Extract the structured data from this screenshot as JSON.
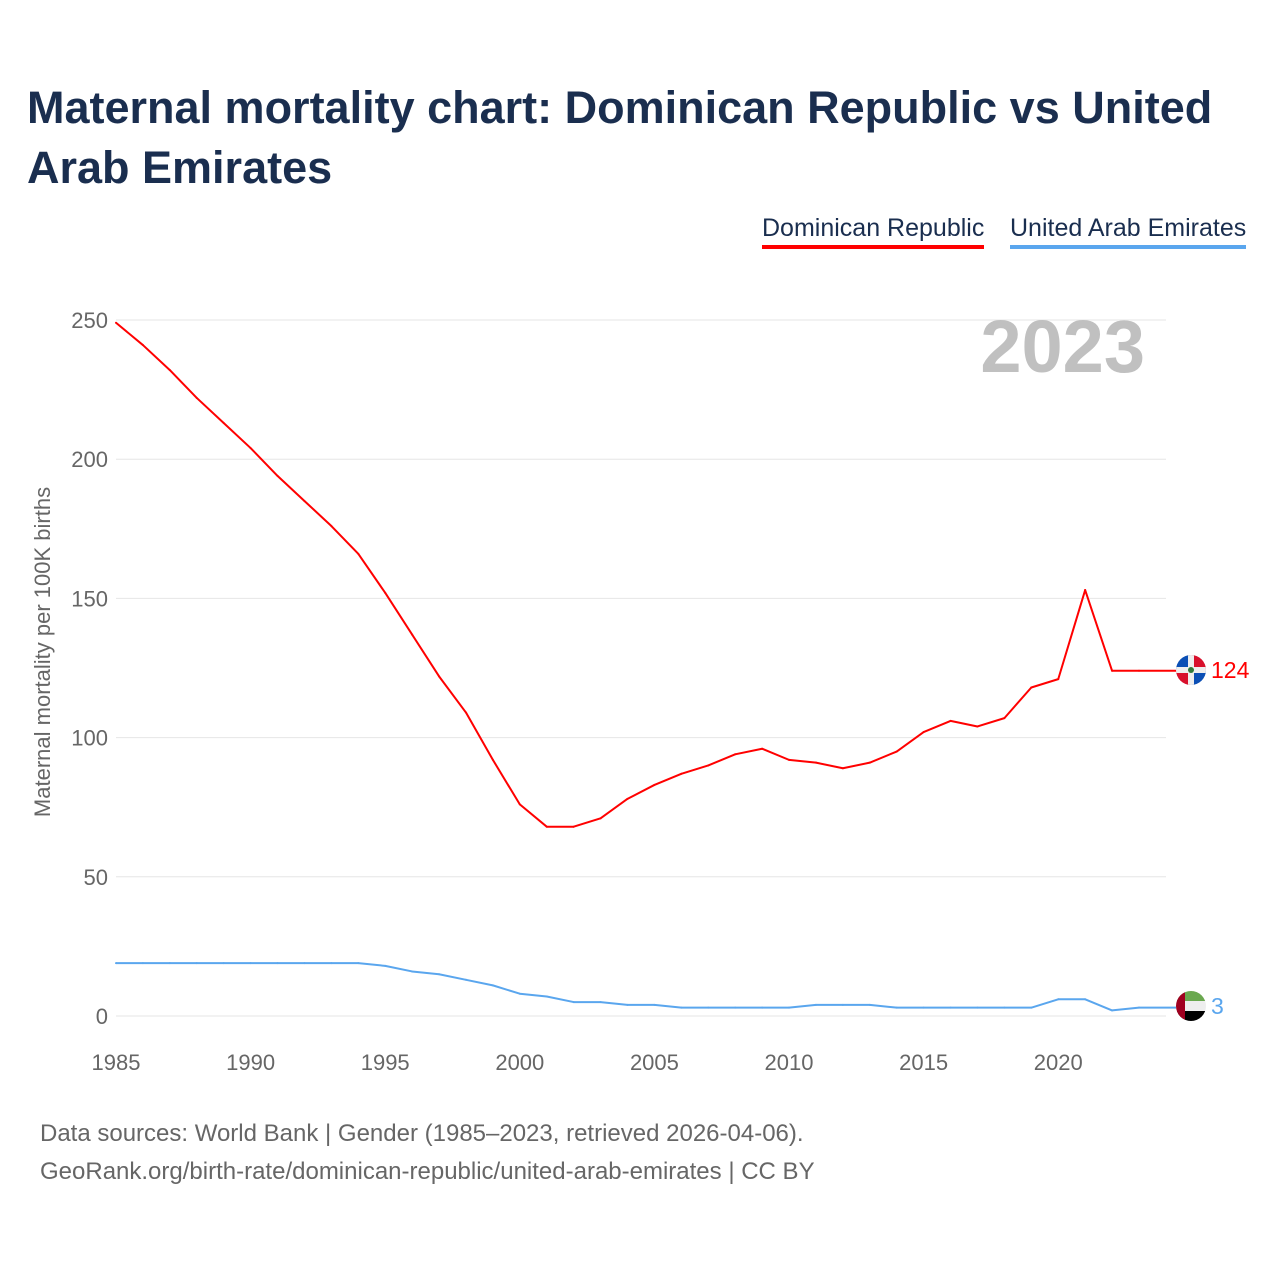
{
  "chart_data": {
    "type": "line",
    "title": "Maternal mortality chart: Dominican Republic vs United Arab Emirates",
    "ylabel": "Maternal mortality per 100K births",
    "xlabel": "",
    "ylim": [
      0,
      250
    ],
    "xlim": [
      1985,
      2023
    ],
    "yticks": [
      0,
      50,
      100,
      150,
      200,
      250
    ],
    "xticks": [
      1985,
      1990,
      1995,
      2000,
      2005,
      2010,
      2015,
      2020
    ],
    "grid": true,
    "legend_position": "top-right",
    "year_label": "2023",
    "x": [
      1985,
      1986,
      1987,
      1988,
      1989,
      1990,
      1991,
      1992,
      1993,
      1994,
      1995,
      1996,
      1997,
      1998,
      1999,
      2000,
      2001,
      2002,
      2003,
      2004,
      2005,
      2006,
      2007,
      2008,
      2009,
      2010,
      2011,
      2012,
      2013,
      2014,
      2015,
      2016,
      2017,
      2018,
      2019,
      2020,
      2021,
      2022,
      2023
    ],
    "series": [
      {
        "name": "Dominican Republic",
        "color": "#ff0000",
        "end_label": "124",
        "values": [
          249,
          241,
          232,
          222,
          213,
          204,
          194,
          185,
          176,
          166,
          152,
          137,
          122,
          109,
          92,
          76,
          68,
          68,
          71,
          78,
          83,
          87,
          90,
          94,
          96,
          92,
          91,
          89,
          91,
          95,
          102,
          106,
          104,
          107,
          118,
          121,
          153,
          124,
          124
        ]
      },
      {
        "name": "United Arab Emirates",
        "color": "#5aa6ee",
        "end_label": "3",
        "values": [
          19,
          19,
          19,
          19,
          19,
          19,
          19,
          19,
          19,
          19,
          18,
          16,
          15,
          13,
          11,
          8,
          7,
          5,
          5,
          4,
          4,
          3,
          3,
          3,
          3,
          3,
          4,
          4,
          4,
          3,
          3,
          3,
          3,
          3,
          3,
          6,
          6,
          2,
          3
        ]
      }
    ]
  },
  "sources": {
    "line1": "Data sources: World Bank | Gender (1985–2023, retrieved 2026-04-06).",
    "line2": "GeoRank.org/birth-rate/dominican-republic/united-arab-emirates | CC BY"
  }
}
